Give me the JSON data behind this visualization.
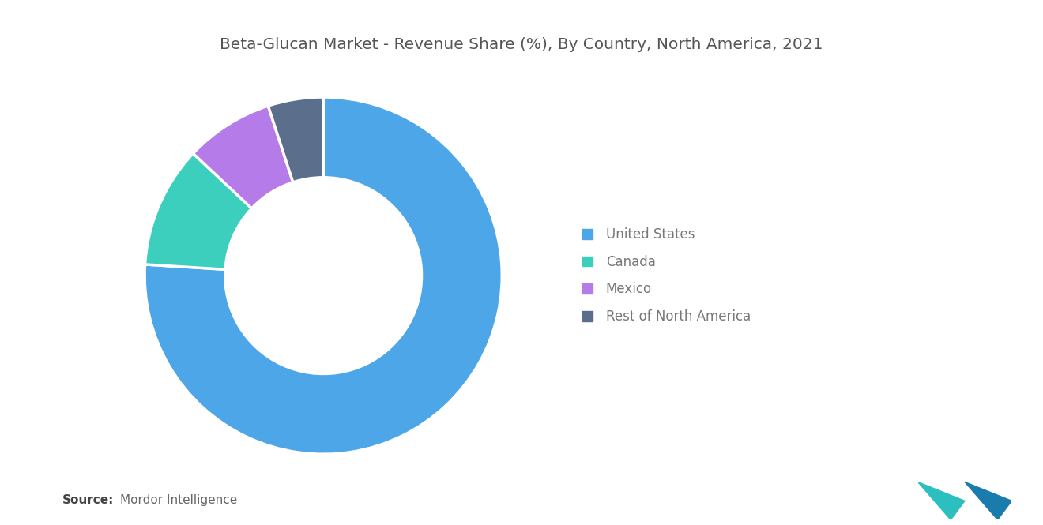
{
  "title": "Beta-Glucan Market - Revenue Share (%), By Country, North America, 2021",
  "labels": [
    "United States",
    "Canada",
    "Mexico",
    "Rest of North America"
  ],
  "values": [
    76,
    11,
    8,
    5
  ],
  "colors": [
    "#4DA6E8",
    "#3DCFBE",
    "#B57BE8",
    "#5B6E8C"
  ],
  "background_color": "#FFFFFF",
  "title_fontsize": 14.5,
  "title_color": "#555555",
  "legend_fontsize": 12,
  "legend_text_color": "#777777",
  "source_bold": "Source:",
  "source_text": "Mordor Intelligence",
  "source_fontsize": 11,
  "wedge_edge_color": "#FFFFFF",
  "wedge_linewidth": 2.5,
  "donut_width": 0.45,
  "startangle": 90,
  "legend_marker_size": 10
}
